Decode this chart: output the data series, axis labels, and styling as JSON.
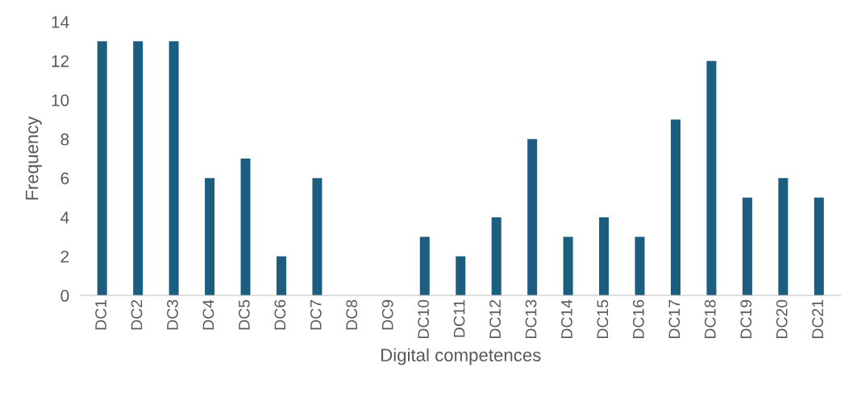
{
  "chart_data": {
    "type": "bar",
    "xlabel": "Digital competences",
    "ylabel": "Frequency",
    "categories": [
      "DC1",
      "DC2",
      "DC3",
      "DC4",
      "DC5",
      "DC6",
      "DC7",
      "DC8",
      "DC9",
      "DC10",
      "DC11",
      "DC12",
      "DC13",
      "DC14",
      "DC15",
      "DC16",
      "DC17",
      "DC18",
      "DC19",
      "DC20",
      "DC21"
    ],
    "values": [
      13,
      13,
      13,
      6,
      7,
      2,
      6,
      0,
      0,
      3,
      2,
      4,
      8,
      3,
      4,
      3,
      9,
      12,
      5,
      6,
      5
    ],
    "color": "#1b5e80",
    "ylim": [
      0,
      14
    ],
    "yticks": [
      0,
      2,
      4,
      6,
      8,
      10,
      12,
      14
    ],
    "grid": false
  }
}
